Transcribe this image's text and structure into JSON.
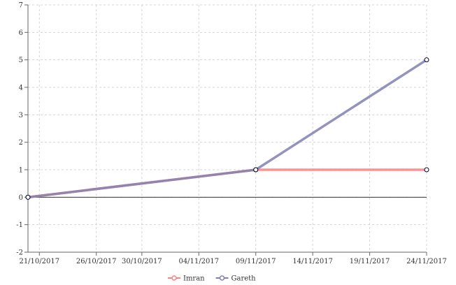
{
  "chart_data": {
    "type": "line",
    "title": "",
    "xlabel": "",
    "ylabel": "",
    "x_axis": {
      "type": "date",
      "range": [
        "2017-10-20",
        "2017-11-24"
      ],
      "ticks": [
        {
          "date": "2017-10-21",
          "label": "21/10/2017"
        },
        {
          "date": "2017-10-26",
          "label": "26/10/2017"
        },
        {
          "date": "2017-10-30",
          "label": "30/10/2017"
        },
        {
          "date": "2017-11-04",
          "label": "04/11/2017"
        },
        {
          "date": "2017-11-09",
          "label": "09/11/2017"
        },
        {
          "date": "2017-11-14",
          "label": "14/11/2017"
        },
        {
          "date": "2017-11-19",
          "label": "19/11/2017"
        },
        {
          "date": "2017-11-24",
          "label": "24/11/2017"
        }
      ]
    },
    "y_axis": {
      "range": [
        -2,
        7
      ],
      "ticks": [
        -2,
        -1,
        0,
        1,
        2,
        3,
        4,
        5,
        6,
        7
      ]
    },
    "grid": true,
    "legend_position": "bottom-center",
    "series": [
      {
        "name": "Imran",
        "color": "#ff8080",
        "points": [
          {
            "x": "2017-10-20",
            "y": 0
          },
          {
            "x": "2017-11-09",
            "y": 1
          },
          {
            "x": "2017-11-24",
            "y": 1
          }
        ]
      },
      {
        "name": "Gareth",
        "color": "#8080b3",
        "points": [
          {
            "x": "2017-10-20",
            "y": 0
          },
          {
            "x": "2017-11-09",
            "y": 1
          },
          {
            "x": "2017-11-24",
            "y": 5
          }
        ]
      }
    ]
  }
}
